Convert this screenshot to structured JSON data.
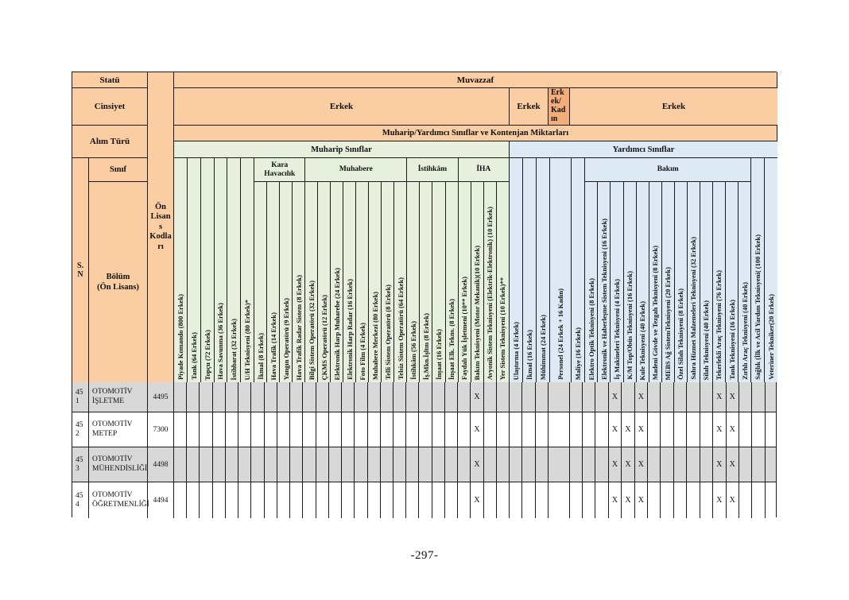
{
  "page": {
    "number": "-297-"
  },
  "colors": {
    "header_orange": "#FBCDA2",
    "header_orange_dark": "#F2AD7B",
    "muharip_green": "#E7F0DD",
    "yardimci_blue": "#DDE9F4",
    "row_shade": "#D8D8D8",
    "grid_line": "#1A1A1A"
  },
  "header": {
    "statu_label": "Statü",
    "statu_value": "Muvazzaf",
    "cinsiyet_label": "Cinsiyet",
    "cinsiyet_cells": [
      {
        "label": "Erkek"
      },
      {
        "label": "Erkek"
      },
      {
        "label": "Erkek/Kadın"
      },
      {
        "label": "Erkek"
      }
    ],
    "alim_turu_label": "Alım Türü",
    "alim_turu_value": "Muharip/Yardımcı Sınıflar ve Kontenjan Miktarları",
    "bands": {
      "muharip": "Muharip Sınıflar",
      "yardimci": "Yardımcı Sınıflar"
    },
    "sn_label": "S. N",
    "sinif_label": "Sınıf",
    "bolum_label": "Bölüm\n(Ön Lisans)",
    "kod_label": "Ön Lisans Kodları"
  },
  "columns": {
    "muharip": [
      {
        "label": "Piyade Komando (800 Erkek)"
      },
      {
        "label": "Tank (64 Erkek)"
      },
      {
        "label": "Topçu (72 Erkek)"
      },
      {
        "label": "Hava Savunma (36 Erkek)"
      },
      {
        "label": "İstihbarat (32 Erkek)"
      },
      {
        "label": "U/H Teknisyeni  (80 Erkek)*"
      },
      {
        "group": "Kara Havacılık",
        "cols": [
          "İkmal  (8 Erkek)",
          "Hava Trafik  (14 Erkek)",
          "Yangın Operatörü  (9 Erkek)",
          "Hava Trafik Radar Sistem (8 Erkek)"
        ]
      },
      {
        "group": "Muhabere",
        "cols": [
          "Bilgi Sistem Operatörü  (32 Erkek)",
          "ÇKMS Operatörü (12 Erkek)",
          "Elektronik Harp Muharebe (24 Erkek)",
          "Elektronik Harp Radar  (16 Erkek)",
          "Foto Film (4 Erkek)",
          "Muhabere Merkezi (80 Erkek)",
          "Telli Sistem Operatörü (8 Erkek)",
          "Telsiz Sistem Operatörü (64 Erkek)"
        ]
      },
      {
        "group": "İstihkâm",
        "cols": [
          "İstihkâm (56 Erkek)",
          "İş.Mkn.İşltm (8 Erkek)",
          "İnşaat  (16 Erkek)",
          "İnşaat Elk. Tekns. (8 Erkek)"
        ]
      },
      {
        "group": "İHA",
        "cols": [
          "Faydalı Yük İşletmeni (10** Erkek)",
          "Bakım Teknisyeni (Motor  Mekanik)(10 Erkek)",
          "Avyonik Sistem Teknisyeni (Elektrik-Elektronik) (10 Erkek)",
          "Yer Sistem Teknisyeni (10 Erkek)**"
        ]
      }
    ],
    "yardimci": [
      {
        "label": "Ulaştırma  (4 Erkek)"
      },
      {
        "label": "İkmal  (16 Erkek)"
      },
      {
        "label": "Mühimmat  (24 Erkek)"
      },
      {
        "label": "Personel  (24 Erkek + 16 Kadın)",
        "wide": true
      },
      {
        "label": "Maliye  (16 Erkek)"
      },
      {
        "group": "Bakım",
        "cols": [
          "Elektro Optik Teknisyeni   (8 Erkek)",
          "Elektronik ve Haberleşme Sistem Teknisyeni (16 Erkek)",
          "İş Makineleri Teknisyeni (4 Erkek)",
          "K/M Top/Obüs  Teknisyeni (16 Erkek)",
          "Kule Teknisyeni (40 Erkek)",
          "Madeni Gövde ve Tezgah Teknisyeni  (8 Erkek)",
          "MEBS Ağ SistemTeknisyeni (20 Erkek)",
          "Özel Silah Teknisyeni (8 Erkek)",
          "Sahra Hizmet  Malzemeleri Teknisyeni  (32 Erkek)",
          "Silah Teknisyeni  (40 Erkek)",
          "Tekerlekli Araç Teknisyeni  (76 Erkek)",
          "Tank Teknisyeni  (16 Erkek)",
          "Zırhlı Araç Teknisyeni  (40 Erkek)"
        ]
      },
      {
        "label": "Sağlık (İlk ve Acil Yardım Teknisyeni( (100 Erkek)"
      },
      {
        "label": "Veteriner Tekniker(20 Erkek)"
      }
    ]
  },
  "rows": [
    {
      "sn": "451",
      "bolum": "OTOMOTİV İŞLETME",
      "kod": "4495",
      "shaded": true,
      "x": [
        23,
        33,
        35,
        41,
        42
      ]
    },
    {
      "sn": "452",
      "bolum": "OTOMOTİV METEP",
      "kod": "7300",
      "shaded": false,
      "x": [
        23,
        33,
        34,
        35,
        41,
        42
      ]
    },
    {
      "sn": "453",
      "bolum": "OTOMOTİV MÜHENDİSLİĞİ",
      "kod": "4498",
      "shaded": true,
      "x": [
        23,
        33,
        34,
        35,
        41,
        42
      ]
    },
    {
      "sn": "454",
      "bolum": "OTOMOTİV ÖĞRETMENLİĞİ",
      "kod": "4494",
      "shaded": false,
      "x": [
        23,
        33,
        34,
        35,
        41,
        42
      ]
    }
  ],
  "x_mark": "X"
}
